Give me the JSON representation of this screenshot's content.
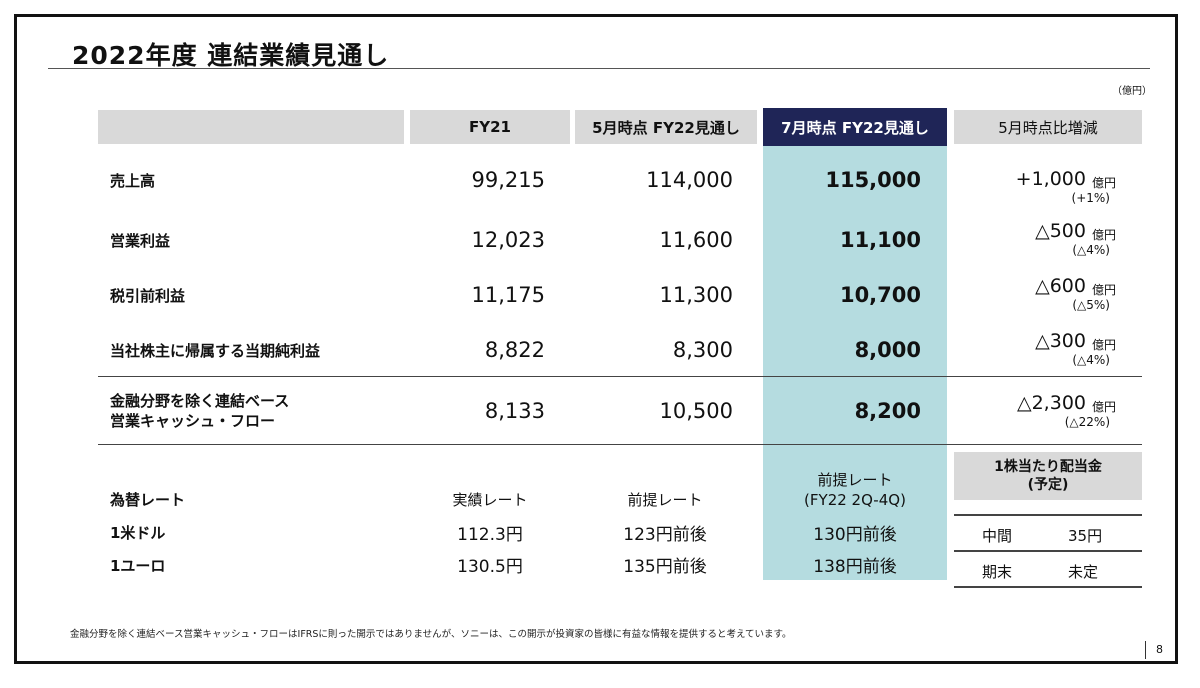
{
  "slide": {
    "title": "2022年度  連結業績見通し",
    "unit": "（億円）",
    "page": "8",
    "footnote": "金融分野を除く連結ベース営業キャッシュ・フローはIFRSに則った開示ではありませんが、ソニーは、この開示が投資家の皆様に有益な情報を提供すると考えています。"
  },
  "table": {
    "headers": {
      "fy21": "FY21",
      "may": "5月時点 FY22見通し",
      "july": "7月時点 FY22見通し",
      "change": "5月時点比増減"
    },
    "rows": [
      {
        "label": "売上高",
        "fy21": "99,215",
        "may": "114,000",
        "july": "115,000",
        "diff": "+1,000",
        "diff_unit": "億円",
        "diff_pct": "(+1%)"
      },
      {
        "label": "営業利益",
        "fy21": "12,023",
        "may": "11,600",
        "july": "11,100",
        "diff": "△500",
        "diff_unit": "億円",
        "diff_pct": "(△4%)"
      },
      {
        "label": "税引前利益",
        "fy21": "11,175",
        "may": "11,300",
        "july": "10,700",
        "diff": "△600",
        "diff_unit": "億円",
        "diff_pct": "(△5%)"
      },
      {
        "label": "当社株主に帰属する当期純利益",
        "fy21": "8,822",
        "may": "8,300",
        "july": "8,000",
        "diff": "△300",
        "diff_unit": "億円",
        "diff_pct": "(△4%)"
      },
      {
        "label_line1": "金融分野を除く連結ベース",
        "label_line2": "営業キャッシュ・フロー",
        "fy21": "8,133",
        "may": "10,500",
        "july": "8,200",
        "diff": "△2,300",
        "diff_unit": "億円",
        "diff_pct": "(△22%)"
      }
    ]
  },
  "fx": {
    "title": "為替レート",
    "col_actual": "実績レート",
    "col_assumed": "前提レート",
    "col_july_line1": "前提レート",
    "col_july_line2": "(FY22 2Q-4Q)",
    "rows": [
      {
        "label": "1米ドル",
        "actual": "112.3円",
        "assumed": "123円前後",
        "july": "130円前後"
      },
      {
        "label": "1ユーロ",
        "actual": "130.5円",
        "assumed": "135円前後",
        "july": "138円前後"
      }
    ]
  },
  "dividend": {
    "title_line1": "1株当たり配当金",
    "title_line2": "(予定)",
    "rows": [
      {
        "label": "中間",
        "value": "35円"
      },
      {
        "label": "期末",
        "value": "未定"
      }
    ]
  }
}
